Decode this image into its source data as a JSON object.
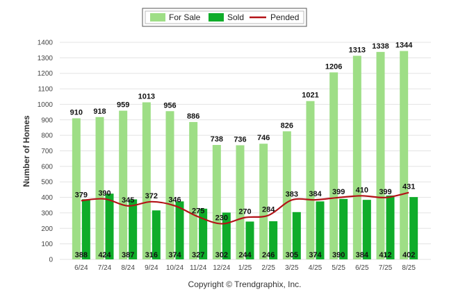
{
  "chart_data": {
    "type": "bar",
    "ylabel": "Number of Homes",
    "ylim": [
      0,
      1400
    ],
    "yticks": [
      0,
      100,
      200,
      300,
      400,
      500,
      600,
      700,
      800,
      900,
      1000,
      1100,
      1200,
      1300,
      1400
    ],
    "grid": true,
    "legend_position": "top",
    "categories": [
      "6/24",
      "7/24",
      "8/24",
      "9/24",
      "10/24",
      "11/24",
      "12/24",
      "1/25",
      "2/25",
      "3/25",
      "4/25",
      "5/25",
      "6/25",
      "7/25",
      "8/25"
    ],
    "series": [
      {
        "name": "For Sale",
        "type": "bar",
        "color": "#9ede86",
        "values": [
          910,
          918,
          959,
          1013,
          956,
          886,
          738,
          736,
          746,
          826,
          1021,
          1206,
          1313,
          1338,
          1344
        ]
      },
      {
        "name": "Sold",
        "type": "bar",
        "color": "#0fac2a",
        "values": [
          388,
          424,
          387,
          316,
          374,
          327,
          302,
          244,
          246,
          305,
          374,
          390,
          384,
          412,
          402
        ]
      },
      {
        "name": "Pended",
        "type": "line",
        "color": "#b31217",
        "values": [
          379,
          390,
          345,
          372,
          346,
          275,
          230,
          270,
          284,
          383,
          384,
          399,
          410,
          399,
          431
        ]
      }
    ]
  },
  "footer": {
    "copyright": "Copyright © Trendgraphix, Inc."
  }
}
